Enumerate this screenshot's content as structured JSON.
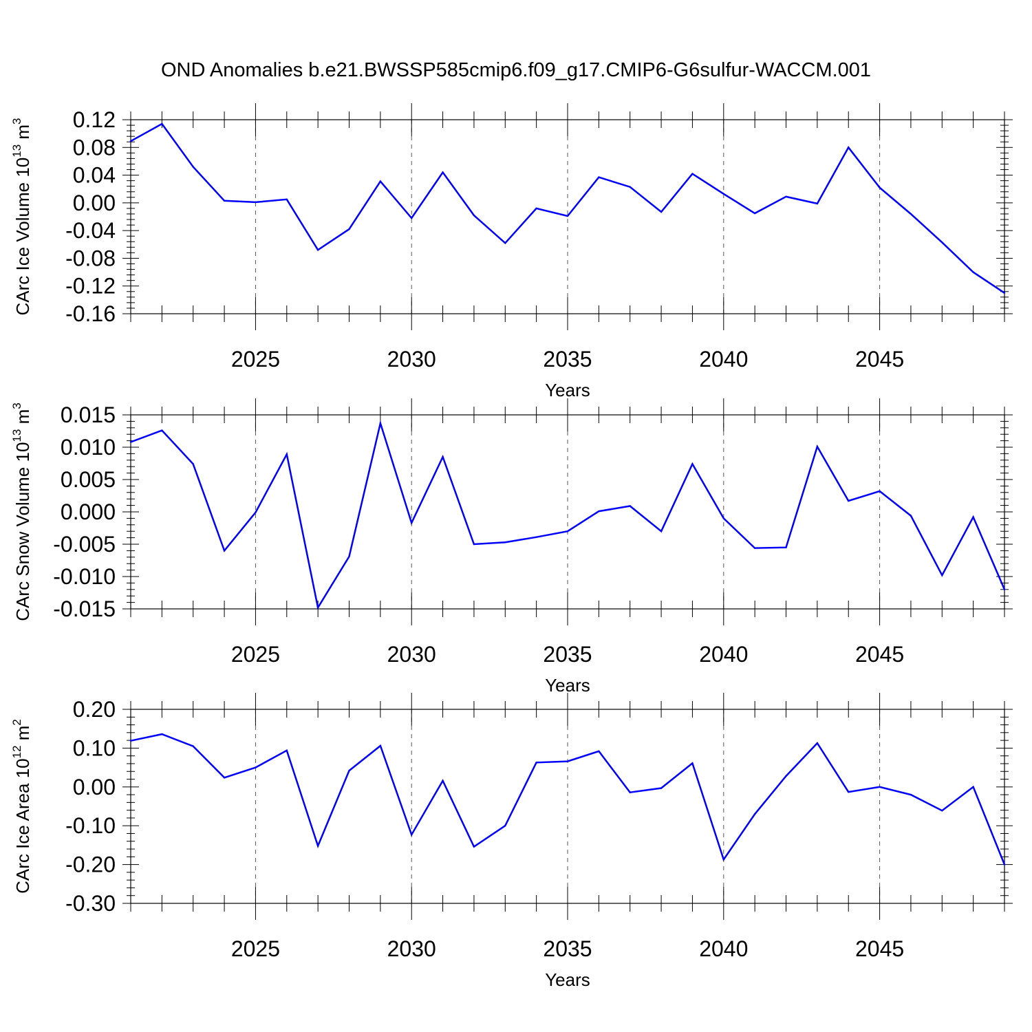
{
  "title": "OND Anomalies b.e21.BWSSP585cmip6.f09_g17.CMIP6-G6sulfur-WACCM.001",
  "colors": {
    "line": "#0000ff",
    "axis": "#000000",
    "grid": "#555555"
  },
  "chart_data": [
    {
      "type": "line",
      "ylabel": "CArc Ice Volume 10",
      "ylabel_exp": "13",
      "ylabel_unit": " m",
      "ylabel_unit_exp": "3",
      "xlabel": "Years",
      "xlim": [
        2021,
        2049
      ],
      "ylim": [
        -0.16,
        0.12
      ],
      "yticks": [
        0.12,
        0.08,
        0.04,
        0.0,
        -0.04,
        -0.08,
        -0.12,
        -0.16
      ],
      "ytick_labels": [
        "0.12",
        "0.08",
        "0.04",
        "0.00",
        "-0.04",
        "-0.08",
        "-0.12",
        "-0.16"
      ],
      "xticks": [
        2025,
        2030,
        2035,
        2040,
        2045
      ],
      "xtick_labels": [
        "2025",
        "2030",
        "2035",
        "2040",
        "2045"
      ],
      "grid": "dashed vertical lines at major x ticks",
      "x": [
        2021,
        2022,
        2023,
        2024,
        2025,
        2026,
        2027,
        2028,
        2029,
        2030,
        2031,
        2032,
        2033,
        2034,
        2035,
        2036,
        2037,
        2038,
        2039,
        2040,
        2041,
        2042,
        2043,
        2044,
        2045,
        2046,
        2047,
        2048,
        2049
      ],
      "values": [
        0.089,
        0.114,
        0.052,
        0.003,
        0.001,
        0.005,
        -0.068,
        -0.038,
        0.031,
        -0.022,
        0.044,
        -0.018,
        -0.058,
        -0.008,
        -0.019,
        0.037,
        0.023,
        -0.013,
        0.042,
        0.013,
        -0.015,
        0.009,
        -0.001,
        0.08,
        0.022,
        -0.016,
        -0.057,
        -0.1,
        -0.13
      ]
    },
    {
      "type": "line",
      "ylabel": "CArc Snow Volume 10",
      "ylabel_exp": "13",
      "ylabel_unit": " m",
      "ylabel_unit_exp": "3",
      "xlabel": "Years",
      "xlim": [
        2021,
        2049
      ],
      "ylim": [
        -0.015,
        0.015
      ],
      "yticks": [
        0.015,
        0.01,
        0.005,
        0.0,
        -0.005,
        -0.01,
        -0.015
      ],
      "ytick_labels": [
        "0.015",
        "0.010",
        "0.005",
        "0.000",
        "-0.005",
        "-0.010",
        "-0.015"
      ],
      "xticks": [
        2025,
        2030,
        2035,
        2040,
        2045
      ],
      "xtick_labels": [
        "2025",
        "2030",
        "2035",
        "2040",
        "2045"
      ],
      "grid": "dashed vertical lines at major x ticks",
      "x": [
        2021,
        2022,
        2023,
        2024,
        2025,
        2026,
        2027,
        2028,
        2029,
        2030,
        2031,
        2032,
        2033,
        2034,
        2035,
        2036,
        2037,
        2038,
        2039,
        2040,
        2041,
        2042,
        2043,
        2044,
        2045,
        2046,
        2047,
        2048,
        2049
      ],
      "values": [
        0.0108,
        0.0126,
        0.0074,
        -0.006,
        -0.0001,
        0.0089,
        -0.0148,
        -0.0069,
        0.0137,
        -0.0017,
        0.0085,
        -0.005,
        -0.0047,
        -0.0039,
        -0.003,
        0.0001,
        0.0009,
        -0.003,
        0.0074,
        -0.001,
        -0.0056,
        -0.0055,
        0.0101,
        0.0017,
        0.0032,
        -0.0006,
        -0.0098,
        -0.0008,
        -0.012
      ]
    },
    {
      "type": "line",
      "ylabel": "CArc Ice Area 10",
      "ylabel_exp": "12",
      "ylabel_unit": " m",
      "ylabel_unit_exp": "2",
      "xlabel": "Years",
      "xlim": [
        2021,
        2049
      ],
      "ylim": [
        -0.3,
        0.2
      ],
      "yticks": [
        0.2,
        0.1,
        0.0,
        -0.1,
        -0.2,
        -0.3
      ],
      "ytick_labels": [
        "0.20",
        "0.10",
        "0.00",
        "-0.10",
        "-0.20",
        "-0.30"
      ],
      "xticks": [
        2025,
        2030,
        2035,
        2040,
        2045
      ],
      "xtick_labels": [
        "2025",
        "2030",
        "2035",
        "2040",
        "2045"
      ],
      "grid": "dashed vertical lines at major x ticks",
      "x": [
        2021,
        2022,
        2023,
        2024,
        2025,
        2026,
        2027,
        2028,
        2029,
        2030,
        2031,
        2032,
        2033,
        2034,
        2035,
        2036,
        2037,
        2038,
        2039,
        2040,
        2041,
        2042,
        2043,
        2044,
        2045,
        2046,
        2047,
        2048,
        2049
      ],
      "values": [
        0.119,
        0.136,
        0.105,
        0.024,
        0.05,
        0.094,
        -0.152,
        0.042,
        0.106,
        -0.123,
        0.016,
        -0.154,
        -0.1,
        0.063,
        0.066,
        0.092,
        -0.014,
        -0.003,
        0.061,
        -0.187,
        -0.07,
        0.028,
        0.113,
        -0.013,
        0.0,
        -0.02,
        -0.061,
        0.0,
        -0.2
      ]
    }
  ]
}
